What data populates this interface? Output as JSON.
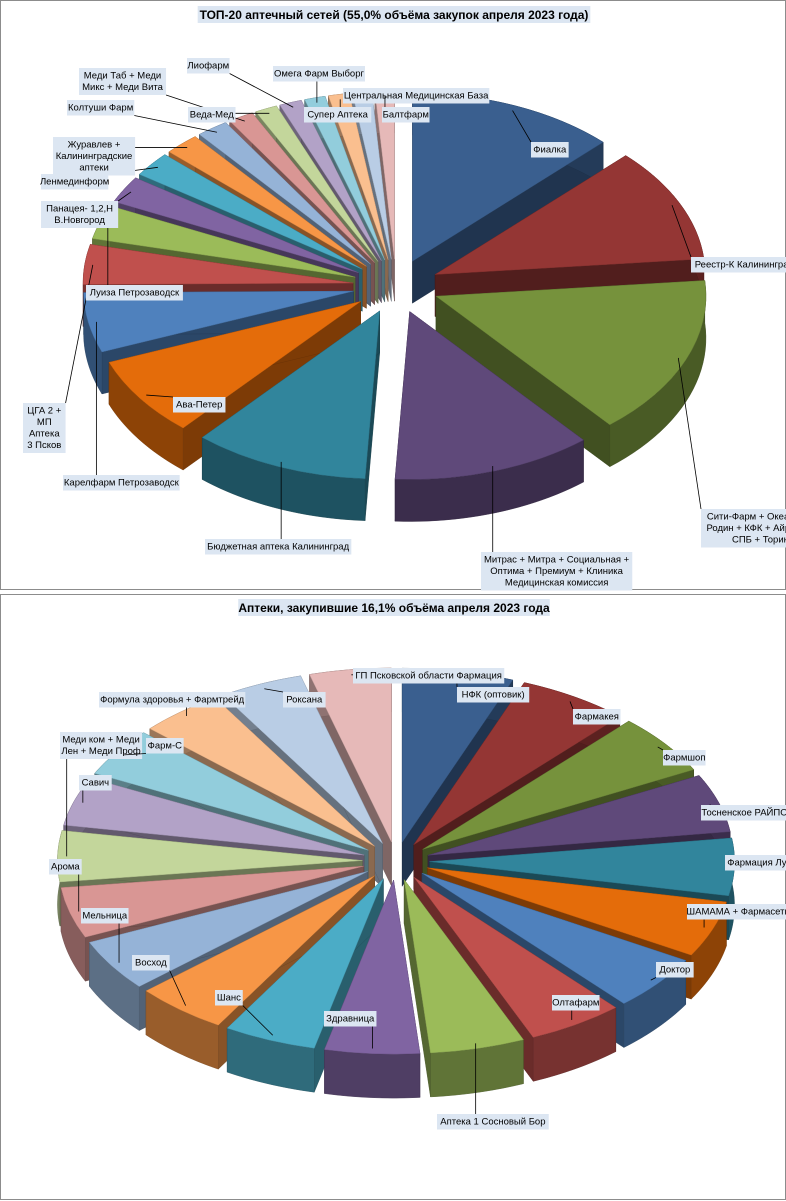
{
  "chart_data": [
    {
      "type": "pie",
      "title": "ТОП-20 аптечный сетей (55,0% объёма закупок апреля 2023 года)",
      "values": [
        13.0,
        11.5,
        16.0,
        12.5,
        11.0,
        8.0,
        6.0,
        4.0,
        3.4,
        2.7,
        2.5,
        2.2,
        2.0,
        1.6,
        1.4,
        1.4,
        1.3,
        1.3,
        1.2,
        1.2
      ],
      "labels": [
        [
          "Фиалка"
        ],
        [
          "Реестр-К Калининград"
        ],
        [
          "Сити-Фарм + Океан + Калинина +",
          "Родин + КФК + Айрин + Витамакс-",
          "СПБ + Торин + Рабиус"
        ],
        [
          "Митрас + Митра + Социальная +",
          "Оптима + Премиум + Клиника",
          "Медицинская комиссия"
        ],
        [
          "Бюджетная аптека Калининград"
        ],
        [
          "Ава-Петер"
        ],
        [
          "Карелфарм Петрозаводск"
        ],
        [
          "ЦГА 2 +",
          "МП",
          "Аптека",
          "3 Псков"
        ],
        [
          "Луиза Петрозаводск"
        ],
        [
          "Панацея- 1,2,Н",
          "В.Новгород"
        ],
        [
          "Ленмединформ"
        ],
        [
          "Журавлев +",
          "Калининградские",
          "аптеки"
        ],
        [
          "Колтуши Фарм"
        ],
        [
          "Меди Таб + Меди",
          "Микс + Меди Вита"
        ],
        [
          "Веда-Мед"
        ],
        [
          "Лиофарм"
        ],
        [
          "Омега Фарм Выборг"
        ],
        [
          "Супер Аптека"
        ],
        [
          "Центральная Медицинская База"
        ],
        [
          "Балтфарм"
        ]
      ],
      "colors": [
        "#3a5f8f",
        "#943634",
        "#76923c",
        "#5f497a",
        "#31859c",
        "#e46c0a",
        "#4f81bd",
        "#c0504d",
        "#9bbb59",
        "#8064a2",
        "#4bacc6",
        "#f79646",
        "#95b3d7",
        "#d99694",
        "#c3d69b",
        "#b2a2c7",
        "#92cddc",
        "#fabf8f",
        "#b9cde5",
        "#e6b9b8"
      ]
    },
    {
      "type": "pie",
      "title": "Аптеки, закупившие 16,1% объёма апреля 2023 года",
      "values": [
        6.0,
        6.0,
        5.7,
        5.5,
        5.4,
        5.3,
        5.2,
        5.2,
        5.1,
        5.1,
        5.0,
        5.0,
        4.9,
        4.8,
        4.8,
        4.6,
        4.6,
        4.5,
        4.5,
        4.4
      ],
      "labels": [
        [
          "НФК (оптовик)"
        ],
        [
          "Фармакея"
        ],
        [
          "Фармшоп"
        ],
        [
          "Тосненское РАЙПО"
        ],
        [
          "Фармация Луга"
        ],
        [
          "ШАМАМА  + Фармасеть"
        ],
        [
          "Доктор"
        ],
        [
          "Олтафарм"
        ],
        [
          "Аптека 1 Сосновый Бор"
        ],
        [
          "Здравница"
        ],
        [
          "Шанс"
        ],
        [
          "Восход"
        ],
        [
          "Мельница"
        ],
        [
          "Арома"
        ],
        [
          "Меди ком + Меди",
          "Лен + Меди Проф"
        ],
        [
          "Савич"
        ],
        [
          "Фарм-С"
        ],
        [
          "Формула здоровья + Фармтрейд"
        ],
        [
          "Роксана"
        ],
        [
          "ГП Псковской области Фармация"
        ]
      ],
      "colors": [
        "#3a5f8f",
        "#943634",
        "#76923c",
        "#5f497a",
        "#31859c",
        "#e46c0a",
        "#4f81bd",
        "#c0504d",
        "#9bbb59",
        "#8064a2",
        "#4bacc6",
        "#f79646",
        "#95b3d7",
        "#d99694",
        "#c3d69b",
        "#b2a2c7",
        "#92cddc",
        "#fabf8f",
        "#b9cde5",
        "#e6b9b8"
      ]
    }
  ]
}
